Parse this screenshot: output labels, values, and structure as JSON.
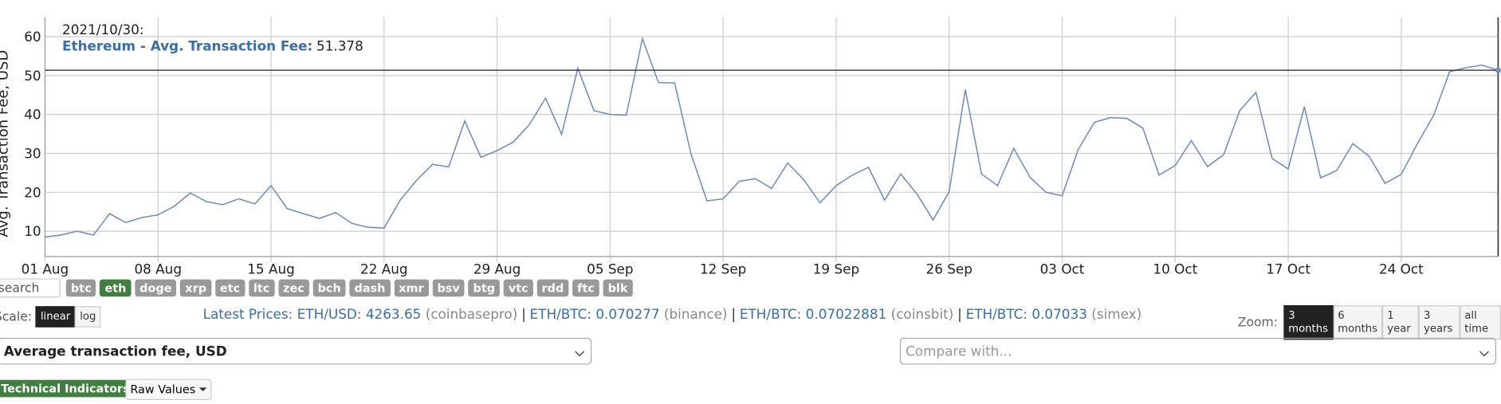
{
  "chart_data": {
    "type": "line",
    "y_label": "Avg. Transaction Fee, USD",
    "color": "#6f8fbf",
    "x": [
      "2021-08-01",
      "2021-08-02",
      "2021-08-03",
      "2021-08-04",
      "2021-08-05",
      "2021-08-06",
      "2021-08-07",
      "2021-08-08",
      "2021-08-09",
      "2021-08-10",
      "2021-08-11",
      "2021-08-12",
      "2021-08-13",
      "2021-08-14",
      "2021-08-15",
      "2021-08-16",
      "2021-08-17",
      "2021-08-18",
      "2021-08-19",
      "2021-08-20",
      "2021-08-21",
      "2021-08-22",
      "2021-08-23",
      "2021-08-24",
      "2021-08-25",
      "2021-08-26",
      "2021-08-27",
      "2021-08-28",
      "2021-08-29",
      "2021-08-30",
      "2021-08-31",
      "2021-09-01",
      "2021-09-02",
      "2021-09-03",
      "2021-09-04",
      "2021-09-05",
      "2021-09-06",
      "2021-09-07",
      "2021-09-08",
      "2021-09-09",
      "2021-09-10",
      "2021-09-11",
      "2021-09-12",
      "2021-09-13",
      "2021-09-14",
      "2021-09-15",
      "2021-09-16",
      "2021-09-17",
      "2021-09-18",
      "2021-09-19",
      "2021-09-20",
      "2021-09-21",
      "2021-09-22",
      "2021-09-23",
      "2021-09-24",
      "2021-09-25",
      "2021-09-26",
      "2021-09-27",
      "2021-09-28",
      "2021-09-29",
      "2021-09-30",
      "2021-10-01",
      "2021-10-02",
      "2021-10-03",
      "2021-10-04",
      "2021-10-05",
      "2021-10-06",
      "2021-10-07",
      "2021-10-08",
      "2021-10-09",
      "2021-10-10",
      "2021-10-11",
      "2021-10-12",
      "2021-10-13",
      "2021-10-14",
      "2021-10-15",
      "2021-10-16",
      "2021-10-17",
      "2021-10-18",
      "2021-10-19",
      "2021-10-20",
      "2021-10-21",
      "2021-10-22",
      "2021-10-23",
      "2021-10-24",
      "2021-10-25",
      "2021-10-26",
      "2021-10-27",
      "2021-10-28",
      "2021-10-29",
      "2021-10-30"
    ],
    "values": [
      8.5,
      9,
      10,
      9,
      14.5,
      12.2,
      13.5,
      14.2,
      16.4,
      19.8,
      17.6,
      16.8,
      18.3,
      17,
      21.7,
      15.8,
      14.5,
      13.3,
      14.8,
      12,
      11,
      10.8,
      18,
      23,
      27.2,
      26.5,
      38.3,
      29,
      30.7,
      32.9,
      37.4,
      44.2,
      34.9,
      51.9,
      41,
      40,
      39.8,
      59.5,
      48.2,
      48.1,
      30,
      17.8,
      18.3,
      22.8,
      23.5,
      21,
      27.5,
      23.2,
      17.3,
      21.7,
      24.4,
      26.4,
      18,
      24.7,
      19.6,
      12.9,
      20.1,
      46.4,
      24.7,
      21.7,
      31.3,
      23.9,
      20,
      19.1,
      31.1,
      38,
      39.2,
      39,
      36.5,
      24.4,
      26.9,
      33.3,
      26.6,
      29.7,
      41,
      45.7,
      28.7,
      26,
      42,
      23.7,
      25.6,
      32.5,
      29.3,
      22.3,
      24.6,
      32.5,
      39.7,
      51,
      52,
      52.7,
      51.378
    ],
    "xlim": [
      "2021-08-01",
      "2021-10-30"
    ],
    "xticks": [
      {
        "value": "2021-08-01",
        "label": "01 Aug"
      },
      {
        "value": "2021-08-08",
        "label": "08 Aug"
      },
      {
        "value": "2021-08-15",
        "label": "15 Aug"
      },
      {
        "value": "2021-08-22",
        "label": "22 Aug"
      },
      {
        "value": "2021-08-29",
        "label": "29 Aug"
      },
      {
        "value": "2021-09-05",
        "label": "05 Sep"
      },
      {
        "value": "2021-09-12",
        "label": "12 Sep"
      },
      {
        "value": "2021-09-19",
        "label": "19 Sep"
      },
      {
        "value": "2021-09-26",
        "label": "26 Sep"
      },
      {
        "value": "2021-10-03",
        "label": "03 Oct"
      },
      {
        "value": "2021-10-10",
        "label": "10 Oct"
      },
      {
        "value": "2021-10-17",
        "label": "17 Oct"
      },
      {
        "value": "2021-10-24",
        "label": "24 Oct"
      }
    ],
    "ylim": [
      3.5,
      65
    ],
    "yticks": [
      10,
      20,
      30,
      40,
      50,
      60
    ],
    "grid": true,
    "tooltip": {
      "date": "2021/10/30:",
      "label": "Ethereum - Avg. Transaction Fee:",
      "value": 51.378
    }
  },
  "controls": {
    "search_placeholder": "search",
    "coins": [
      "btc",
      "eth",
      "doge",
      "xrp",
      "etc",
      "ltc",
      "zec",
      "bch",
      "dash",
      "xmr",
      "bsv",
      "btg",
      "vtc",
      "rdd",
      "ftc",
      "blk"
    ],
    "active_coin": "eth",
    "scale_label": "Scale:",
    "scales": [
      "linear",
      "log"
    ],
    "active_scale": "linear",
    "latest_prices_label": "Latest Prices:",
    "separator": "|",
    "prices": [
      {
        "pair": "ETH/USD:",
        "price": "4263.65",
        "exchange": "(coinbasepro)"
      },
      {
        "pair": "ETH/BTC:",
        "price": "0.070277",
        "exchange": "(binance)"
      },
      {
        "pair": "ETH/BTC:",
        "price": "0.07022881",
        "exchange": "(coinsbit)"
      },
      {
        "pair": "ETH/BTC:",
        "price": "0.07033",
        "exchange": "(simex)"
      }
    ],
    "zoom_label": "Zoom:",
    "zooms": [
      "3 months",
      "6 months",
      "1 year",
      "3 years",
      "all time"
    ],
    "active_zoom": "3 months",
    "metric_select": "Average transaction fee, USD",
    "compare_select": "Compare with...",
    "indicators_label": "Technical Indicators:",
    "indicators_button": "Raw Values"
  }
}
